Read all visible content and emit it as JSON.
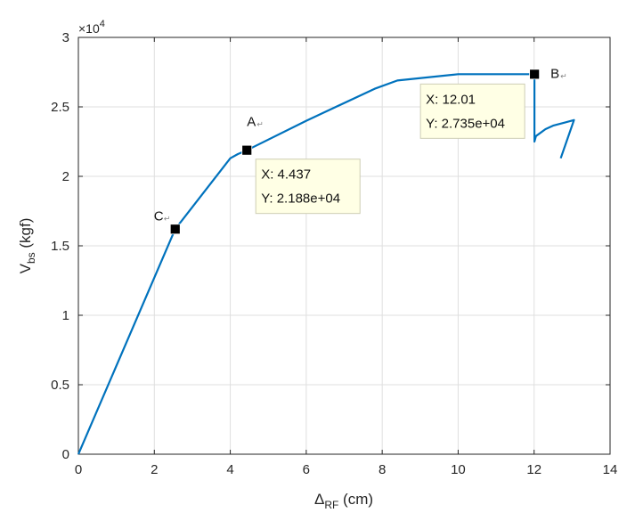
{
  "chart_data": {
    "type": "line",
    "xlabel": {
      "main": "Δ",
      "sub": "RF",
      "unit": " (cm)"
    },
    "ylabel": {
      "main": "V",
      "sub": "bs",
      "unit": " (kgf)"
    },
    "xlim": [
      0,
      14
    ],
    "ylim": [
      0,
      30000
    ],
    "x_ticks": [
      0,
      2,
      4,
      6,
      8,
      10,
      12,
      14
    ],
    "x_tick_labels": [
      "0",
      "2",
      "4",
      "6",
      "8",
      "10",
      "12",
      "14"
    ],
    "y_ticks": [
      0,
      5000,
      10000,
      15000,
      20000,
      25000,
      30000
    ],
    "y_tick_labels": [
      "0",
      "0.5",
      "1",
      "1.5",
      "2",
      "2.5",
      "3"
    ],
    "y_exponent": {
      "base": "×10",
      "power": "4"
    },
    "grid": true,
    "line_color": "#0072BD",
    "series": [
      {
        "x": [
          0,
          2.55,
          4.0,
          4.2,
          4.437,
          6.0,
          7.8,
          8.4,
          10.0,
          12.01,
          12.01,
          12.05,
          12.3,
          12.5,
          13.05,
          12.7
        ],
        "y": [
          0,
          16200,
          21300,
          21600,
          21880,
          24000,
          26300,
          26900,
          27350,
          27350,
          22500,
          22900,
          23400,
          23650,
          24050,
          21300
        ]
      }
    ],
    "markers": [
      {
        "label": "C",
        "x": 2.55,
        "y": 16200
      },
      {
        "label": "A",
        "x": 4.437,
        "y": 21880
      },
      {
        "label": "B",
        "x": 12.01,
        "y": 27350
      }
    ],
    "datatips": [
      {
        "x_text": "X: 4.437",
        "y_text": "Y: 2.188e+04",
        "x": 4.437,
        "y": 21880
      },
      {
        "x_text": "X: 12.01",
        "y_text": "Y: 2.735e+04",
        "x": 12.01,
        "y": 27350
      }
    ]
  }
}
